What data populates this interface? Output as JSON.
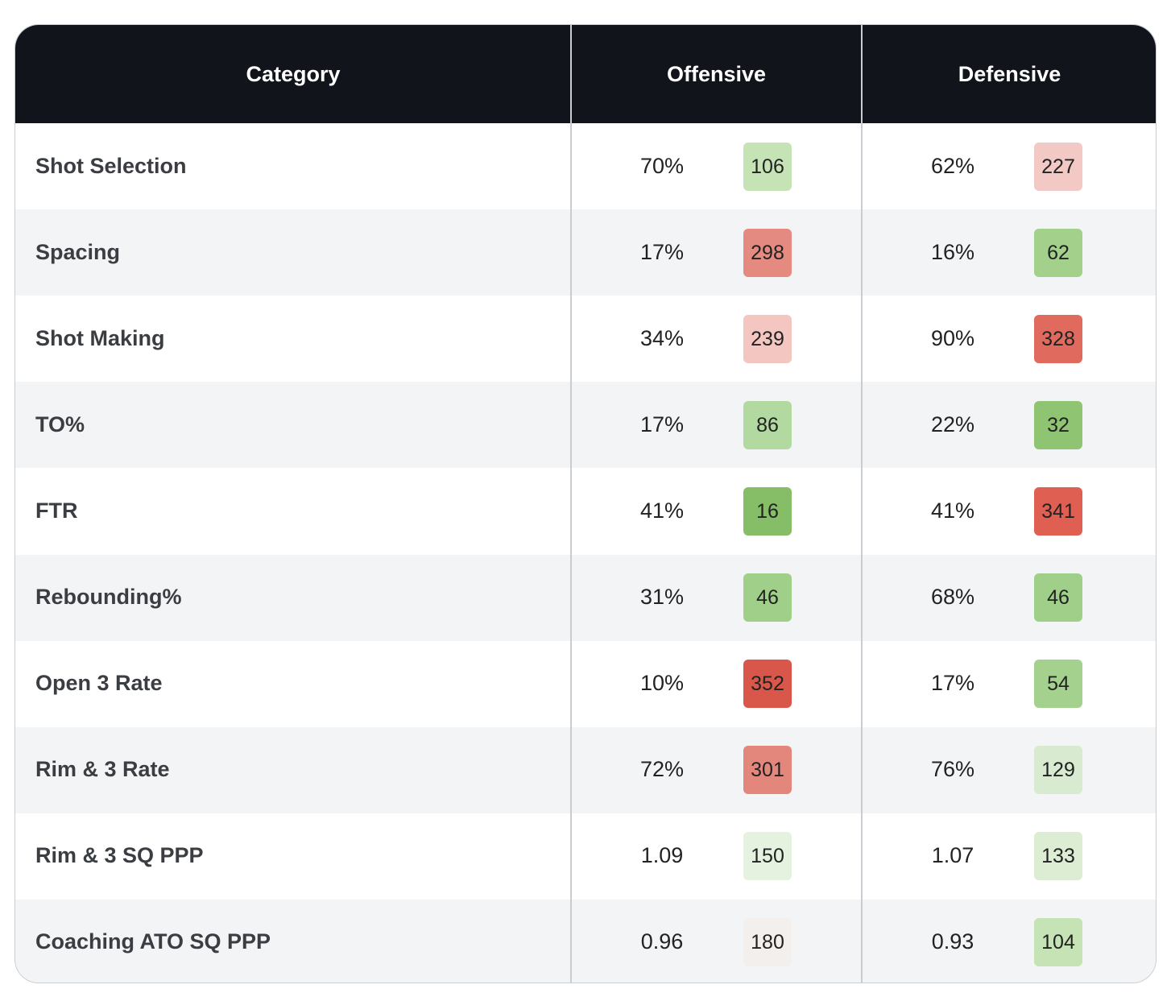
{
  "table": {
    "headers": [
      "Category",
      "Offensive",
      "Defensive"
    ],
    "rows": [
      {
        "category": "Shot Selection",
        "offensive": {
          "value": "70%",
          "rank": 106,
          "color": "#c6e3b5"
        },
        "defensive": {
          "value": "62%",
          "rank": 227,
          "color": "#f2c9c4"
        }
      },
      {
        "category": "Spacing",
        "offensive": {
          "value": "17%",
          "rank": 298,
          "color": "#e58a80"
        },
        "defensive": {
          "value": "16%",
          "rank": 62,
          "color": "#a3d18c"
        }
      },
      {
        "category": "Shot Making",
        "offensive": {
          "value": "34%",
          "rank": 239,
          "color": "#f3c6c1"
        },
        "defensive": {
          "value": "90%",
          "rank": 328,
          "color": "#e06a5d"
        }
      },
      {
        "category": "TO%",
        "offensive": {
          "value": "17%",
          "rank": 86,
          "color": "#b2d9a0"
        },
        "defensive": {
          "value": "22%",
          "rank": 32,
          "color": "#8fc472"
        }
      },
      {
        "category": "FTR",
        "offensive": {
          "value": "41%",
          "rank": 16,
          "color": "#85be66"
        },
        "defensive": {
          "value": "41%",
          "rank": 341,
          "color": "#df5f52"
        }
      },
      {
        "category": "Rebounding%",
        "offensive": {
          "value": "31%",
          "rank": 46,
          "color": "#9fcf89"
        },
        "defensive": {
          "value": "68%",
          "rank": 46,
          "color": "#9fcf89"
        }
      },
      {
        "category": "Open 3 Rate",
        "offensive": {
          "value": "10%",
          "rank": 352,
          "color": "#d9574a"
        },
        "defensive": {
          "value": "17%",
          "rank": 54,
          "color": "#a4d18e"
        }
      },
      {
        "category": "Rim & 3 Rate",
        "offensive": {
          "value": "72%",
          "rank": 301,
          "color": "#e3877d"
        },
        "defensive": {
          "value": "76%",
          "rank": 129,
          "color": "#d8ebd0"
        }
      },
      {
        "category": "Rim & 3 SQ PPP",
        "offensive": {
          "value": "1.09",
          "rank": 150,
          "color": "#e5f2df"
        },
        "defensive": {
          "value": "1.07",
          "rank": 133,
          "color": "#dcedd4"
        }
      },
      {
        "category": "Coaching ATO SQ PPP",
        "offensive": {
          "value": "0.96",
          "rank": 180,
          "color": "#f2efed"
        },
        "defensive": {
          "value": "0.93",
          "rank": 104,
          "color": "#c6e3b6"
        }
      }
    ]
  }
}
